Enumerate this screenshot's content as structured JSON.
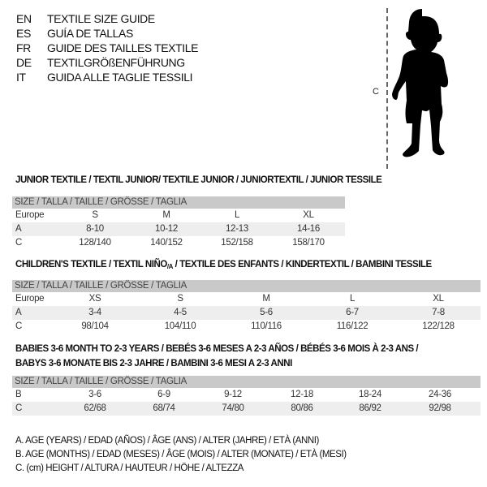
{
  "languages": [
    {
      "code": "EN",
      "text": "TEXTILE SIZE GUIDE"
    },
    {
      "code": "ES",
      "text": "GUÍA DE TALLAS"
    },
    {
      "code": "FR",
      "text": "GUIDE DES TAILLES TEXTILE"
    },
    {
      "code": "DE",
      "text": "TEXTILGRÖßENFÜHRUNG"
    },
    {
      "code": "IT",
      "text": "GUIDA ALLE TAGLIE TESSILI"
    }
  ],
  "figure": {
    "label": "C",
    "icon": "child-silhouette"
  },
  "junior": {
    "title": "JUNIOR TEXTILE / TEXTIL JUNIOR/ TEXTILE JUNIOR / JUNIORTEXTIL / JUNIOR TESSILE",
    "header": "SIZE / TALLA / TAILLE / GRÖSSE / TAGLIA",
    "rows": [
      {
        "label": "Europe",
        "cells": [
          "S",
          "M",
          "L",
          "XL"
        ]
      },
      {
        "label": "A",
        "cells": [
          "8-10",
          "10-12",
          "12-13",
          "14-16"
        ]
      },
      {
        "label": "C",
        "cells": [
          "128/140",
          "140/152",
          "152/158",
          "158/170"
        ]
      }
    ]
  },
  "children": {
    "title_a": "CHILDREN'S TEXTILE / TEXTIL NIÑO",
    "title_sub": "/A",
    "title_b": " / TEXTILE DES ENFANTS / KINDERTEXTIL / BAMBINI TESSILE",
    "header": "SIZE / TALLA / TAILLE / GRÖSSE / TAGLIA",
    "rows": [
      {
        "label": "Europe",
        "cells": [
          "XS",
          "S",
          "M",
          "L",
          "XL"
        ]
      },
      {
        "label": "A",
        "cells": [
          "3-4",
          "4-5",
          "5-6",
          "6-7",
          "7-8"
        ]
      },
      {
        "label": "C",
        "cells": [
          "98/104",
          "104/110",
          "110/116",
          "116/122",
          "122/128"
        ]
      }
    ]
  },
  "babies": {
    "title_line1": "BABIES 3-6 MONTH TO 2-3 YEARS / BEBÉS 3-6 MESES A 2-3 AÑOS / BÉBÉS 3-6 MOIS À 2-3 ANS /",
    "title_line2": "BABYS 3-6 MONATE BIS 2-3 JAHRE / BAMBINI 3-6 MESI A 2-3 ANNI",
    "header": "SIZE / TALLA / TAILLE / GRÖSSE / TAGLIA",
    "rows": [
      {
        "label": "B",
        "cells": [
          "3-6",
          "6-9",
          "9-12",
          "12-18",
          "18-24",
          "24-36"
        ]
      },
      {
        "label": "C",
        "cells": [
          "62/68",
          "68/74",
          "74/80",
          "80/86",
          "86/92",
          "92/98"
        ]
      }
    ]
  },
  "legend": [
    "A. AGE (YEARS) / EDAD (AÑOS) / ÂGE (ANS) / ALTER (JAHRE) / ETÀ (ANNI)",
    "B. AGE (MONTHS) / EDAD (MESES) / ÂGE (MOIS) / ALTER (MONATE) / ETÀ (MESI)",
    "C. (cm) HEIGHT / ALTURA / HAUTEUR / HÖHE / ALTEZZA"
  ]
}
